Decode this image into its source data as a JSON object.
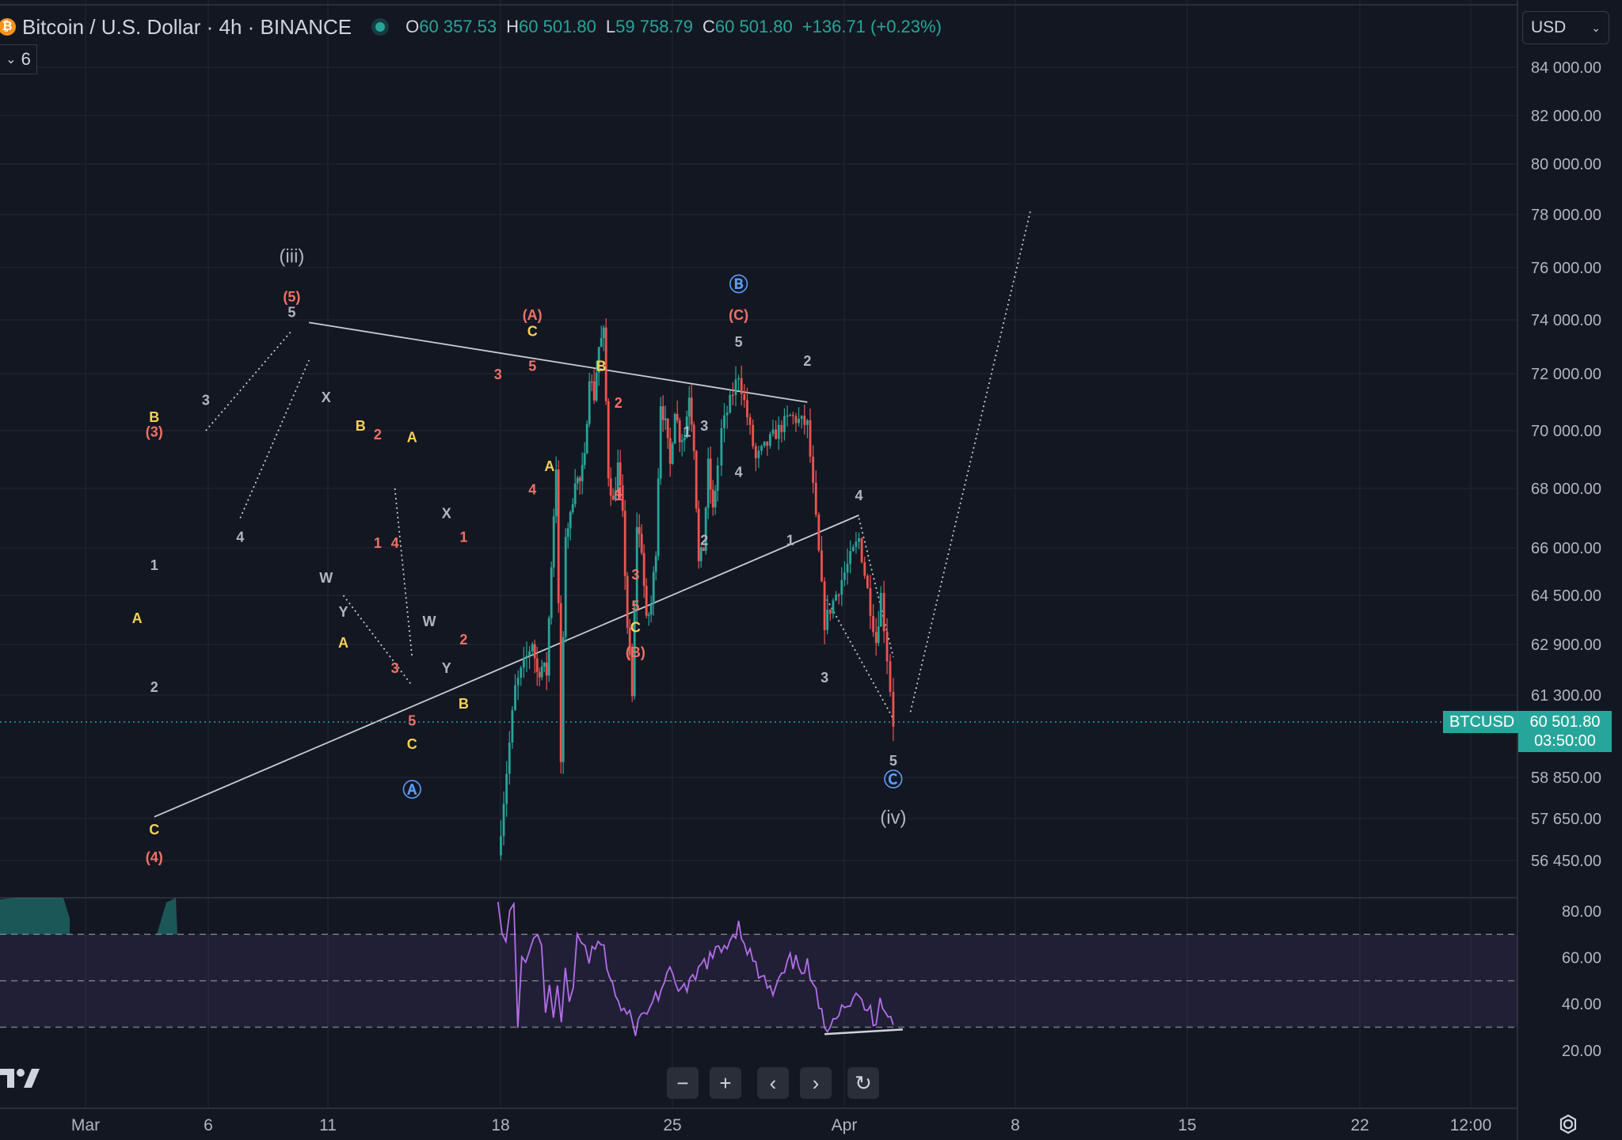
{
  "header": {
    "coin_icon": "bitcoin-icon",
    "coin_glyph": "₿",
    "title": "Bitcoin / U.S. Dollar · 4h · BINANCE",
    "ohlc": [
      {
        "k": "O",
        "v": "60 357.53"
      },
      {
        "k": "H",
        "v": "60 501.80"
      },
      {
        "k": "L",
        "v": "59 758.79"
      },
      {
        "k": "C",
        "v": "60 501.80"
      },
      {
        "k": "",
        "v": "+136.71 (+0.23%)"
      }
    ]
  },
  "indicators": {
    "collapse_glyph": "⌄",
    "count": "6"
  },
  "currency": {
    "label": "USD",
    "caret": "⌄"
  },
  "last_price": {
    "symbol": "BTCUSD",
    "price": "60 501.80",
    "countdown": "03:50:00"
  },
  "toolbar": {
    "zoom_out": "−",
    "zoom_in": "+",
    "back": "‹",
    "forward": "›",
    "reset": "↻"
  },
  "colors": {
    "background": "#131722",
    "up": "#26a69a",
    "down": "#ef5350",
    "rsi": "#b36ee8",
    "wave_red": "#f17166",
    "wave_yellow": "#f7d154",
    "wave_blue": "#5b9cf5",
    "wave_white": "#b2b5be"
  },
  "chart_data": {
    "type": "candlestick",
    "symbol": "BTCUSD",
    "interval": "4h",
    "exchange": "BINANCE",
    "y_ticks": [
      "84 000.00",
      "82 000.00",
      "80 000.00",
      "78 000.00",
      "76 000.00",
      "74 000.00",
      "72 000.00",
      "70 000.00",
      "68 000.00",
      "66 000.00",
      "64 500.00",
      "62 900.00",
      "61 300.00",
      "58 850.00",
      "57 650.00",
      "56 450.00"
    ],
    "x_ticks": [
      "Mar",
      "6",
      "11",
      "18",
      "25",
      "Apr",
      "8",
      "15",
      "22",
      "12:00"
    ],
    "price_path": [
      [
        "Feb 27",
        56600
      ],
      [
        "Feb 28",
        61500
      ],
      [
        "Feb 29",
        63000
      ],
      [
        "Mar 1",
        62000
      ],
      [
        "Mar 2",
        62200
      ],
      [
        "Mar 3",
        62000
      ],
      [
        "Mar 4",
        65500
      ],
      [
        "Mar 5",
        68800
      ],
      [
        "Mar 5",
        59300
      ],
      [
        "Mar 6",
        66500
      ],
      [
        "Mar 7",
        67000
      ],
      [
        "Mar 8",
        68400
      ],
      [
        "Mar 9",
        68200
      ],
      [
        "Mar 10",
        69000
      ],
      [
        "Mar 11",
        72000
      ],
      [
        "Mar 12",
        71200
      ],
      [
        "Mar 13",
        73000
      ],
      [
        "Mar 14",
        73500
      ],
      [
        "Mar 15",
        68500
      ],
      [
        "Mar 16",
        67500
      ],
      [
        "Mar 17",
        68800
      ],
      [
        "Mar 18",
        67000
      ],
      [
        "Mar 19",
        63500
      ],
      [
        "Mar 20",
        61200
      ],
      [
        "Mar 20",
        66800
      ],
      [
        "Mar 21",
        66000
      ],
      [
        "Mar 22",
        63600
      ],
      [
        "Mar 23",
        64200
      ],
      [
        "Mar 24",
        66000
      ],
      [
        "Mar 25",
        71000
      ],
      [
        "Mar 26",
        70200
      ],
      [
        "Mar 27",
        68800
      ],
      [
        "Mar 28",
        70800
      ],
      [
        "Mar 29",
        69800
      ],
      [
        "Mar 30",
        69800
      ],
      [
        "Mar 31",
        71300
      ],
      [
        "Apr 1",
        69500
      ],
      [
        "Apr 2",
        65500
      ],
      [
        "Apr 3",
        66000
      ],
      [
        "Apr 4",
        68800
      ],
      [
        "Apr 5",
        67200
      ],
      [
        "Apr 6",
        68800
      ],
      [
        "Apr 7",
        70000
      ],
      [
        "Apr 8",
        72000
      ],
      [
        "Apr 9",
        69000
      ],
      [
        "Apr 10",
        69800
      ],
      [
        "Apr 11",
        70500
      ],
      [
        "Apr 12",
        70200
      ],
      [
        "Apr 13",
        63600
      ],
      [
        "Apr 14",
        65000
      ],
      [
        "Apr 15",
        66300
      ],
      [
        "Apr 16",
        63000
      ],
      [
        "Apr 16",
        64500
      ],
      [
        "Apr 17",
        60500
      ]
    ],
    "rsi": {
      "levels": [
        "80.00",
        "60.00",
        "40.00",
        "20.00"
      ],
      "bands": [
        70,
        30
      ],
      "values": [
        [
          "Feb 27",
          88
        ],
        [
          "Mar 1",
          67
        ],
        [
          "Mar 3",
          66
        ],
        [
          "Mar 4",
          78
        ],
        [
          "Mar 5",
          82
        ],
        [
          "Mar 5",
          33
        ],
        [
          "Mar 6",
          59
        ],
        [
          "Mar 8",
          59
        ],
        [
          "Mar 10",
          60
        ],
        [
          "Mar 11",
          71
        ],
        [
          "Mar 13",
          66
        ],
        [
          "Mar 14",
          68
        ],
        [
          "Mar 15",
          37
        ],
        [
          "Mar 17",
          45
        ],
        [
          "Mar 18",
          34
        ],
        [
          "Mar 19",
          47
        ],
        [
          "Mar 20",
          31
        ],
        [
          "Mar 21",
          52
        ],
        [
          "Mar 22",
          37
        ],
        [
          "Mar 24",
          46
        ],
        [
          "Mar 25",
          72
        ],
        [
          "Mar 26",
          65
        ],
        [
          "Mar 28",
          62
        ],
        [
          "Mar 30",
          60
        ],
        [
          "Mar 31",
          66
        ],
        [
          "Apr 1",
          40
        ],
        [
          "Apr 2",
          30
        ],
        [
          "Apr 4",
          52
        ],
        [
          "Apr 5",
          45
        ],
        [
          "Apr 6",
          58
        ],
        [
          "Apr 7",
          63
        ],
        [
          "Apr 8",
          74
        ],
        [
          "Apr 9",
          55
        ],
        [
          "Apr 10",
          44
        ],
        [
          "Apr 11",
          58
        ],
        [
          "Apr 12",
          56
        ],
        [
          "Apr 13",
          30
        ],
        [
          "Apr 14",
          40
        ],
        [
          "Apr 15",
          42
        ],
        [
          "Apr 16",
          33
        ],
        [
          "Apr 16",
          44
        ],
        [
          "Apr 17",
          31
        ]
      ]
    },
    "wave_labels": [
      {
        "text": "(iii)",
        "color": "white",
        "at": [
          "Mar 13",
          76200
        ]
      },
      {
        "text": "(5)",
        "color": "red",
        "at": [
          "Mar 13",
          74700
        ]
      },
      {
        "text": "5",
        "color": "white",
        "at": [
          "Mar 13",
          74100
        ]
      },
      {
        "text": "3",
        "color": "white",
        "at": [
          "Mar 8",
          70900
        ]
      },
      {
        "text": "4",
        "color": "white",
        "at": [
          "Mar 10",
          66200
        ]
      },
      {
        "text": "(3)",
        "color": "red",
        "at": [
          "Mar 5",
          69800
        ]
      },
      {
        "text": "B",
        "color": "yellow",
        "at": [
          "Mar 5",
          70300
        ]
      },
      {
        "text": "1",
        "color": "white",
        "at": [
          "Mar 5",
          65300
        ]
      },
      {
        "text": "A",
        "color": "yellow",
        "at": [
          "Mar 4",
          63600
        ]
      },
      {
        "text": "2",
        "color": "white",
        "at": [
          "Mar 5",
          61400
        ]
      },
      {
        "text": "C",
        "color": "yellow",
        "at": [
          "Mar 5",
          57200
        ]
      },
      {
        "text": "(4)",
        "color": "red",
        "at": [
          "Mar 5",
          56400
        ]
      },
      {
        "text": "X",
        "color": "white",
        "at": [
          "Mar 15",
          71000
        ]
      },
      {
        "text": "W",
        "color": "white",
        "at": [
          "Mar 15",
          64900
        ]
      },
      {
        "text": "Y",
        "color": "white",
        "at": [
          "Mar 16",
          63800
        ]
      },
      {
        "text": "A",
        "color": "yellow",
        "at": [
          "Mar 16",
          62800
        ]
      },
      {
        "text": "B",
        "color": "yellow",
        "at": [
          "Mar 17",
          70000
        ]
      },
      {
        "text": "2",
        "color": "red",
        "at": [
          "Mar 18",
          69700
        ]
      },
      {
        "text": "1",
        "color": "red",
        "at": [
          "Mar 18",
          66000
        ]
      },
      {
        "text": "4",
        "color": "red",
        "at": [
          "Mar 19",
          66000
        ]
      },
      {
        "text": "3",
        "color": "red",
        "at": [
          "Mar 19",
          62000
        ]
      },
      {
        "text": "5",
        "color": "red",
        "at": [
          "Mar 20",
          60400
        ]
      },
      {
        "text": "C",
        "color": "yellow",
        "at": [
          "Mar 20",
          59700
        ]
      },
      {
        "text": "Ⓐ",
        "color": "blue",
        "at": [
          "Mar 20",
          58300
        ]
      },
      {
        "text": "A",
        "color": "yellow",
        "at": [
          "Mar 20",
          69600
        ]
      },
      {
        "text": "X",
        "color": "white",
        "at": [
          "Mar 22",
          67000
        ]
      },
      {
        "text": "W",
        "color": "white",
        "at": [
          "Mar 21",
          63500
        ]
      },
      {
        "text": "1",
        "color": "red",
        "at": [
          "Mar 23",
          66200
        ]
      },
      {
        "text": "Y",
        "color": "white",
        "at": [
          "Mar 22",
          62000
        ]
      },
      {
        "text": "2",
        "color": "red",
        "at": [
          "Mar 23",
          62900
        ]
      },
      {
        "text": "B",
        "color": "yellow",
        "at": [
          "Mar 23",
          60900
        ]
      },
      {
        "text": "3",
        "color": "red",
        "at": [
          "Mar 25",
          71800
        ]
      },
      {
        "text": "(A)",
        "color": "red",
        "at": [
          "Mar 27",
          74000
        ]
      },
      {
        "text": "C",
        "color": "yellow",
        "at": [
          "Mar 27",
          73400
        ]
      },
      {
        "text": "5",
        "color": "red",
        "at": [
          "Mar 27",
          72100
        ]
      },
      {
        "text": "4",
        "color": "red",
        "at": [
          "Mar 27",
          67800
        ]
      },
      {
        "text": "A",
        "color": "yellow",
        "at": [
          "Mar 28",
          68600
        ]
      },
      {
        "text": "B",
        "color": "yellow",
        "at": [
          "Mar 31",
          72100
        ]
      },
      {
        "text": "2",
        "color": "red",
        "at": [
          "Apr 1",
          70800
        ]
      },
      {
        "text": "1",
        "color": "red",
        "at": [
          "Apr 1",
          67600
        ]
      },
      {
        "text": "4",
        "color": "red",
        "at": [
          "Apr 1",
          67700
        ]
      },
      {
        "text": "3",
        "color": "red",
        "at": [
          "Apr 2",
          65000
        ]
      },
      {
        "text": "5",
        "color": "red",
        "at": [
          "Apr 2",
          64000
        ]
      },
      {
        "text": "C",
        "color": "yellow",
        "at": [
          "Apr 2",
          63300
        ]
      },
      {
        "text": "(B)",
        "color": "red",
        "at": [
          "Apr 2",
          62500
        ]
      },
      {
        "text": "1",
        "color": "white",
        "at": [
          "Apr 5",
          69800
        ]
      },
      {
        "text": "2",
        "color": "white",
        "at": [
          "Apr 6",
          66100
        ]
      },
      {
        "text": "3",
        "color": "white",
        "at": [
          "Apr 6",
          70000
        ]
      },
      {
        "text": "4",
        "color": "white",
        "at": [
          "Apr 8",
          68400
        ]
      },
      {
        "text": "Ⓑ",
        "color": "blue",
        "at": [
          "Apr 8",
          75100
        ]
      },
      {
        "text": "(C)",
        "color": "red",
        "at": [
          "Apr 8",
          74000
        ]
      },
      {
        "text": "5",
        "color": "white",
        "at": [
          "Apr 8",
          73000
        ]
      },
      {
        "text": "1",
        "color": "white",
        "at": [
          "Apr 11",
          66100
        ]
      },
      {
        "text": "2",
        "color": "white",
        "at": [
          "Apr 12",
          72300
        ]
      },
      {
        "text": "3",
        "color": "white",
        "at": [
          "Apr 13",
          61700
        ]
      },
      {
        "text": "4",
        "color": "white",
        "at": [
          "Apr 15",
          67600
        ]
      },
      {
        "text": "5",
        "color": "white",
        "at": [
          "Apr 17",
          59200
        ]
      },
      {
        "text": "Ⓒ",
        "color": "blue",
        "at": [
          "Apr 17",
          58600
        ]
      },
      {
        "text": "(iv)",
        "color": "white",
        "at": [
          "Apr 17",
          57500
        ]
      }
    ],
    "lines": [
      {
        "style": "solid",
        "color": "white",
        "from": [
          "Mar 14",
          73900
        ],
        "to": [
          "Apr 12",
          71000
        ]
      },
      {
        "style": "solid",
        "color": "white",
        "from": [
          "Mar 5",
          57700
        ],
        "to": [
          "Apr 15",
          67100
        ]
      },
      {
        "style": "dotted",
        "color": "white",
        "from": [
          "Mar 8",
          70000
        ],
        "to": [
          "Mar 13",
          73600
        ]
      },
      {
        "style": "dotted",
        "color": "white",
        "from": [
          "Mar 10",
          67000
        ],
        "to": [
          "Mar 14",
          72500
        ]
      },
      {
        "style": "dotted",
        "color": "white",
        "from": [
          "Mar 16",
          64500
        ],
        "to": [
          "Mar 20",
          61600
        ]
      },
      {
        "style": "dotted",
        "color": "white",
        "from": [
          "Mar 19",
          68000
        ],
        "to": [
          "Mar 20",
          62500
        ]
      },
      {
        "style": "dotted",
        "color": "white",
        "from": [
          "Apr 13",
          64500
        ],
        "to": [
          "Apr 17",
          60600
        ]
      },
      {
        "style": "dotted",
        "color": "white",
        "from": [
          "Apr 15",
          67000
        ],
        "to": [
          "Apr 17",
          62500
        ]
      },
      {
        "style": "dotted",
        "color": "white",
        "from": [
          "Apr 18",
          60800
        ],
        "to": [
          "Apr 25",
          78200
        ]
      }
    ]
  }
}
